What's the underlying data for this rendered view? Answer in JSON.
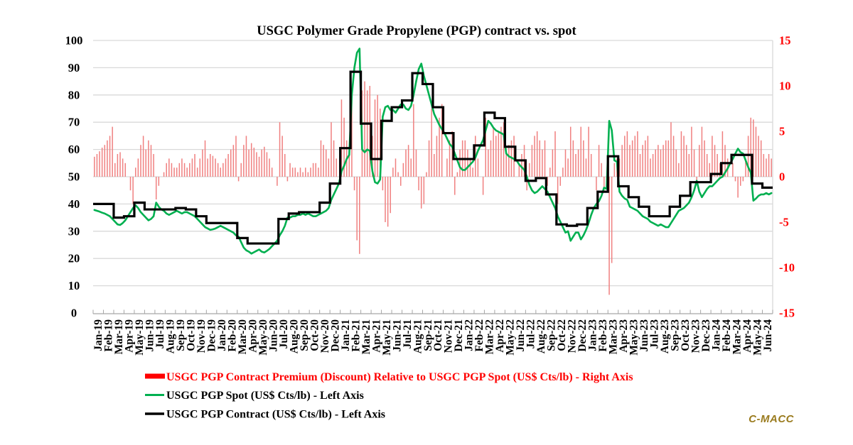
{
  "title": "USGC Polymer Grade Propylene (PGP) contract vs. spot",
  "watermark": "C-MACC",
  "colors": {
    "spot_line": "#00B050",
    "contract_line": "#000000",
    "premium_bar": "#F08080",
    "legend_premium_text": "#FF0000",
    "right_axis_text": "#FF0000",
    "grid": "#D9D9D9",
    "axis": "#A6A6A6",
    "watermark": "#9A7B1E"
  },
  "legend": [
    {
      "label": "USGC PGP Contract Premium (Discount) Relative to USGC PGP Spot (US$ Cts/lb) - Right Axis",
      "swatch": "bar",
      "color": "#FF0000"
    },
    {
      "label": "USGC PGP Spot (US$ Cts/lb) - Left Axis",
      "swatch": "line",
      "color": "#00B050"
    },
    {
      "label": "USGC PGP Contract (US$ Cts/lb) - Left Axis",
      "swatch": "line",
      "color": "#000000"
    }
  ],
  "left_axis": {
    "min": 0,
    "max": 100,
    "ticks": [
      0,
      10,
      20,
      30,
      40,
      50,
      60,
      70,
      80,
      90,
      100
    ]
  },
  "right_axis": {
    "min": -15,
    "max": 15,
    "ticks": [
      -15,
      -10,
      -5,
      0,
      5,
      10,
      15
    ]
  },
  "chart_data": {
    "type": "combo",
    "weeks_per_month": 4,
    "left_axis_range": [
      0,
      100
    ],
    "right_axis_range": [
      -15,
      15
    ],
    "x_labels": [
      "Jan-19",
      "Feb-19",
      "Mar-19",
      "Apr-19",
      "May-19",
      "Jun-19",
      "Jul-19",
      "Aug-19",
      "Sep-19",
      "Oct-19",
      "Nov-19",
      "Dec-19",
      "Jan-20",
      "Feb-20",
      "Mar-20",
      "Apr-20",
      "May-20",
      "Jun-20",
      "Jul-20",
      "Aug-20",
      "Sep-20",
      "Oct-20",
      "Nov-20",
      "Dec-20",
      "Jan-21",
      "Feb-21",
      "Mar-21",
      "Apr-21",
      "May-21",
      "Jun-21",
      "Jul-21",
      "Aug-21",
      "Sep-21",
      "Oct-21",
      "Nov-21",
      "Dec-21",
      "Jan-22",
      "Feb-22",
      "Mar-22",
      "Apr-22",
      "May-22",
      "Jun-22",
      "Jul-22",
      "Aug-22",
      "Sep-22",
      "Oct-22",
      "Nov-22",
      "Dec-22",
      "Jan-23",
      "Feb-23",
      "Mar-23",
      "Apr-23",
      "May-23",
      "Jun-23",
      "Jul-23",
      "Aug-23",
      "Sep-23",
      "Oct-23",
      "Nov-23",
      "Dec-23",
      "Jan-24",
      "Feb-24",
      "Mar-24",
      "Apr-24",
      "May-24",
      "Jun-24"
    ],
    "series": [
      {
        "name": "USGC PGP Contract Premium (Discount) Relative to USGC PGP Spot (US$ Cts/lb)",
        "type": "bar",
        "axis": "right",
        "resolution": "weekly",
        "derived": "contract_monthly_value_minus_spot_weekly_value"
      },
      {
        "name": "USGC PGP Spot (US$ Cts/lb)",
        "type": "line",
        "axis": "left",
        "resolution": "weekly",
        "values": [
          37.8,
          37.5,
          37.2,
          36.8,
          36.5,
          36,
          35.5,
          34.5,
          33.5,
          32.5,
          32.3,
          33,
          34,
          35.5,
          37,
          38.5,
          39.5,
          38.5,
          37,
          36,
          35,
          34,
          34.5,
          35.5,
          40.5,
          39,
          38,
          37.5,
          36.5,
          36,
          36.5,
          37,
          37.5,
          37,
          36.5,
          37,
          37,
          36.5,
          36,
          35.5,
          34.5,
          33.5,
          32.5,
          31.5,
          31,
          30.5,
          30.7,
          31,
          31.5,
          32,
          31.5,
          31,
          30.5,
          30,
          29.5,
          28.5,
          28,
          26,
          24,
          23,
          22.5,
          21.8,
          22.3,
          22.8,
          23.3,
          22.5,
          22.2,
          22.8,
          23.5,
          24.5,
          25.5,
          26.5,
          28.5,
          30,
          32,
          35,
          35,
          35.5,
          35.5,
          36,
          36,
          36.5,
          36,
          36.5,
          36,
          35.5,
          35.5,
          36,
          36.5,
          37,
          37.5,
          38.5,
          41.5,
          43.5,
          45.5,
          47.5,
          52,
          54,
          56.5,
          58,
          80,
          90,
          95.5,
          97,
          60,
          59,
          60,
          59.5,
          52,
          48,
          47.5,
          49,
          72,
          75.5,
          76,
          74.5,
          74.5,
          73.5,
          75,
          76.5,
          76.5,
          75,
          74.5,
          76,
          80,
          85,
          89.5,
          91.5,
          87,
          83.5,
          80,
          76.5,
          73,
          71,
          69,
          67.5,
          66,
          64,
          62,
          61,
          58.5,
          56,
          53.5,
          52.5,
          52.5,
          53.5,
          54.5,
          55.5,
          57,
          59.5,
          61.5,
          63.5,
          67,
          70.5,
          69.5,
          68,
          67,
          66.5,
          66,
          65.5,
          58.5,
          57.5,
          57,
          56.5,
          56,
          54.5,
          53.5,
          52.5,
          50,
          47,
          45,
          44,
          44.5,
          45.5,
          46.5,
          45.5,
          44.5,
          42.5,
          40.5,
          38.5,
          35.5,
          33.5,
          31.5,
          29.5,
          30,
          26.5,
          28,
          29.5,
          29.5,
          27,
          28.5,
          30.5,
          33,
          36,
          38.5,
          40,
          41,
          43,
          46,
          45.5,
          70.5,
          67,
          56,
          55.5,
          44.5,
          43,
          42,
          41.5,
          39,
          38.5,
          38,
          37.5,
          36.5,
          35.5,
          35,
          34.5,
          33.5,
          33,
          32.5,
          32,
          32.5,
          32,
          31.5,
          31.5,
          33,
          34.5,
          36,
          37.5,
          38,
          38.5,
          39.5,
          40.5,
          42.5,
          45,
          48.5,
          44.5,
          42.5,
          44,
          45.5,
          46.5,
          46.5,
          47.5,
          48.5,
          49.5,
          50,
          51.5,
          53,
          55,
          56.5,
          58.5,
          60.3,
          59,
          58.5,
          56,
          53.5,
          51.5,
          41.2,
          42,
          43,
          43.5,
          43.5,
          44,
          43.5,
          44
        ]
      },
      {
        "name": "USGC PGP Contract (US$ Cts/lb)",
        "type": "step_line",
        "axis": "left",
        "resolution": "monthly",
        "values": [
          40,
          40,
          35,
          35.5,
          40.5,
          38,
          38,
          38,
          38.5,
          38,
          35.5,
          33,
          33,
          33,
          27.5,
          25.5,
          25.5,
          25.5,
          34.5,
          36.5,
          37,
          37,
          40.5,
          47.5,
          60.5,
          88.5,
          69.5,
          56.5,
          70.5,
          75.5,
          78,
          88,
          84,
          75.5,
          66,
          56.5,
          56.5,
          61.5,
          73.5,
          71.5,
          61,
          56,
          48.5,
          49.5,
          43.5,
          32.5,
          32,
          32.5,
          38.5,
          44.5,
          57.5,
          46.5,
          42.5,
          39,
          35.5,
          35.5,
          39,
          43,
          48,
          48,
          51,
          55,
          58,
          58,
          47.5,
          46
        ]
      }
    ]
  }
}
